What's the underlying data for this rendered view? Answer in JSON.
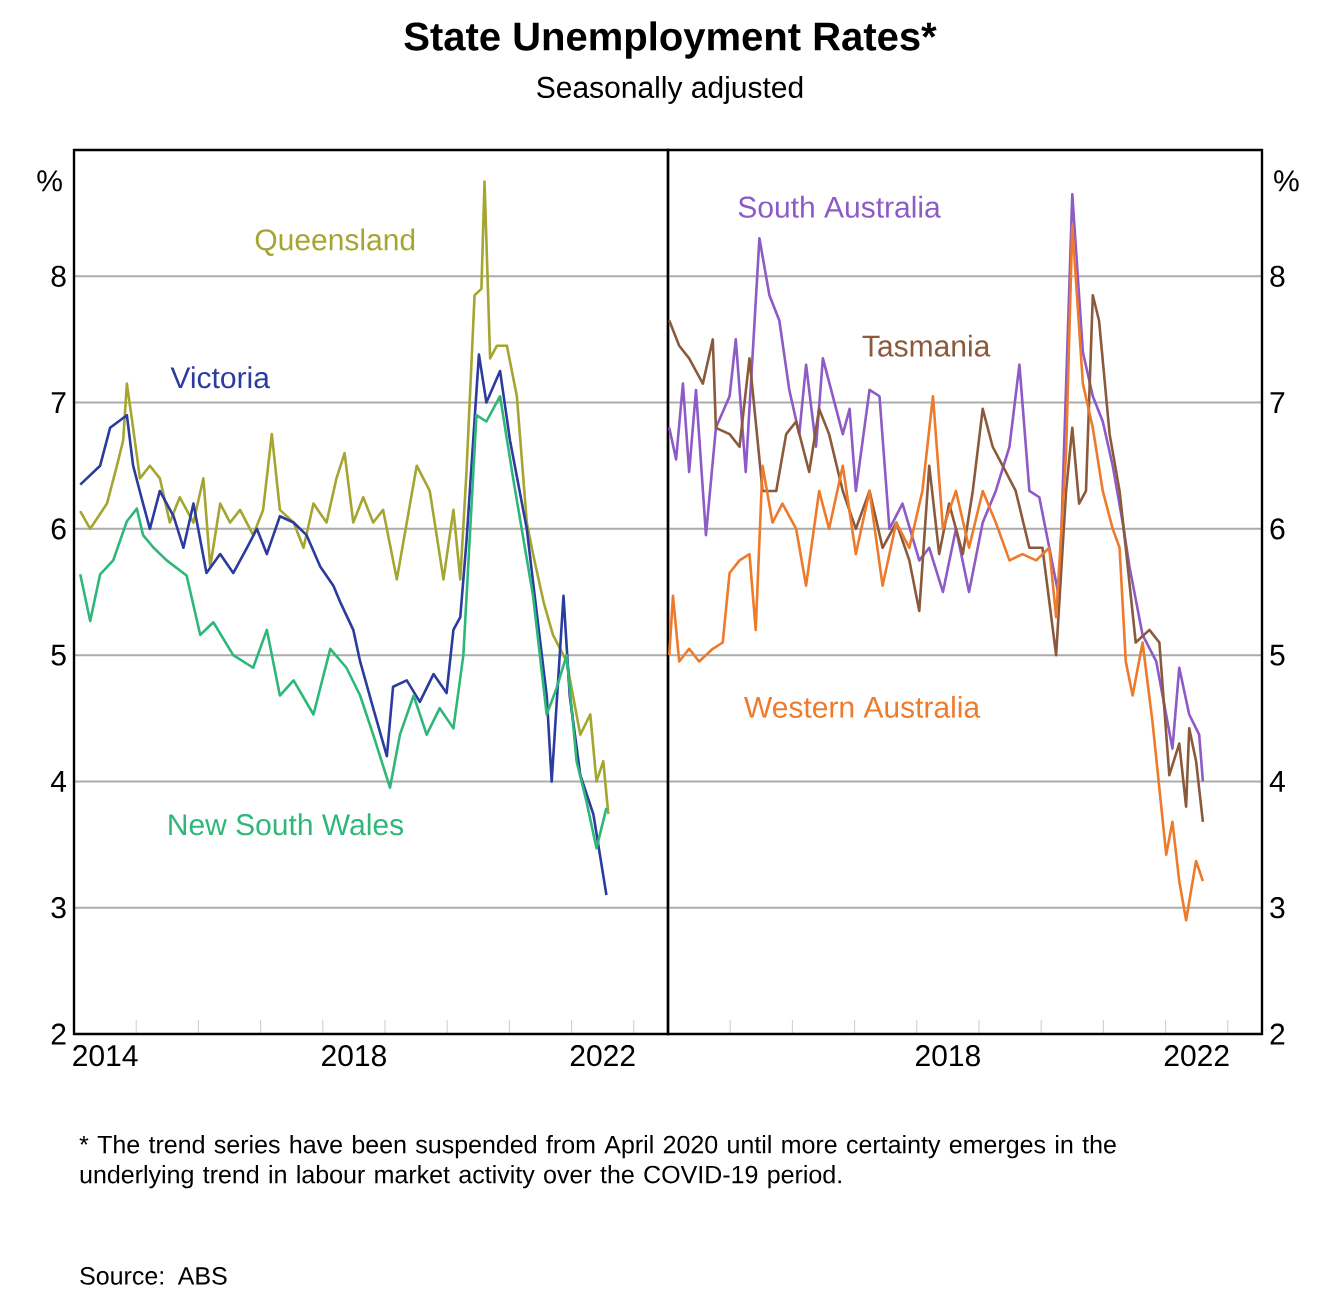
{
  "chart_data": [
    {
      "type": "line",
      "title": "State Unemployment Rates*",
      "subtitle": "Seasonally adjusted",
      "ylabel": "%",
      "grid": "y",
      "xlim": [
        2014,
        2023.55
      ],
      "ylim": [
        2,
        9
      ],
      "xticks": [
        {
          "value": 2014.5,
          "label": "2014"
        },
        {
          "value": 2018.5,
          "label": "2018"
        },
        {
          "value": 2022.5,
          "label": "2022"
        },
        {
          "value": 2015,
          "label": null
        },
        {
          "value": 2016,
          "label": null
        },
        {
          "value": 2017,
          "label": null
        },
        {
          "value": 2018,
          "label": null
        },
        {
          "value": 2019,
          "label": null
        },
        {
          "value": 2020,
          "label": null
        },
        {
          "value": 2021,
          "label": null
        },
        {
          "value": 2022,
          "label": null
        },
        {
          "value": 2023,
          "label": null
        }
      ],
      "yticks": [
        2,
        3,
        4,
        5,
        6,
        7,
        8
      ],
      "annotations": [
        "* The trend series have been suspended from April 2020 until more certainty emerges in the underlying trend in labour market activity over the COVID-19 period.",
        "Source: ABS"
      ],
      "series": [
        {
          "name": "Queensland",
          "color": "#a5a532",
          "x": [
            2014.1,
            2014.26,
            2014.53,
            2014.69,
            2014.79,
            2014.85,
            2014.95,
            2015.06,
            2015.22,
            2015.38,
            2015.54,
            2015.7,
            2015.92,
            2016.08,
            2016.19,
            2016.35,
            2016.51,
            2016.67,
            2016.88,
            2017.04,
            2017.18,
            2017.31,
            2017.53,
            2017.69,
            2017.85,
            2018.06,
            2018.22,
            2018.35,
            2018.49,
            2018.65,
            2018.81,
            2018.97,
            2019.19,
            2019.35,
            2019.51,
            2019.72,
            2019.94,
            2020.1,
            2020.21,
            2020.31,
            2020.44,
            2020.55,
            2020.6,
            2020.69,
            2020.8,
            2020.96,
            2021.12,
            2021.28,
            2021.38,
            2021.55,
            2021.7,
            2021.92,
            2022.14,
            2022.3,
            2022.4,
            2022.51,
            2022.59
          ],
          "values": [
            6.14,
            6.0,
            6.2,
            6.5,
            6.7,
            7.15,
            6.8,
            6.4,
            6.5,
            6.4,
            6.05,
            6.25,
            6.05,
            6.4,
            5.7,
            6.2,
            6.05,
            6.15,
            5.95,
            6.15,
            6.75,
            6.15,
            6.05,
            5.85,
            6.2,
            6.05,
            6.4,
            6.6,
            6.05,
            6.25,
            6.05,
            6.15,
            5.6,
            6.05,
            6.5,
            6.3,
            5.6,
            6.15,
            5.6,
            6.45,
            7.85,
            7.9,
            8.75,
            7.35,
            7.45,
            7.45,
            7.05,
            6.05,
            5.8,
            5.42,
            5.16,
            4.95,
            4.37,
            4.53,
            4.0,
            4.16,
            3.74
          ]
        },
        {
          "name": "Victoria",
          "color": "#2b3c9e",
          "x": [
            2014.1,
            2014.42,
            2014.58,
            2014.85,
            2014.95,
            2015.11,
            2015.22,
            2015.38,
            2015.6,
            2015.76,
            2015.92,
            2016.13,
            2016.35,
            2016.56,
            2016.78,
            2016.94,
            2017.1,
            2017.31,
            2017.53,
            2017.74,
            2017.96,
            2018.17,
            2018.28,
            2018.49,
            2018.6,
            2018.81,
            2019.03,
            2019.13,
            2019.35,
            2019.56,
            2019.78,
            2019.99,
            2020.1,
            2020.21,
            2020.31,
            2020.51,
            2020.63,
            2020.85,
            2021.01,
            2021.28,
            2021.38,
            2021.6,
            2021.68,
            2021.87,
            2021.97,
            2022.14,
            2022.35,
            2022.56
          ],
          "values": [
            6.35,
            6.5,
            6.8,
            6.9,
            6.5,
            6.2,
            6.0,
            6.3,
            6.1,
            5.85,
            6.2,
            5.65,
            5.8,
            5.65,
            5.85,
            6.0,
            5.8,
            6.1,
            6.05,
            5.95,
            5.7,
            5.55,
            5.42,
            5.2,
            4.95,
            4.58,
            4.2,
            4.75,
            4.8,
            4.63,
            4.85,
            4.7,
            5.2,
            5.3,
            5.9,
            7.38,
            7.0,
            7.25,
            6.7,
            6.0,
            5.58,
            4.68,
            4.0,
            5.47,
            4.68,
            4.05,
            3.74,
            3.1
          ]
        },
        {
          "name": "New South Wales",
          "color": "#2fb77a",
          "x": [
            2014.1,
            2014.26,
            2014.42,
            2014.63,
            2014.85,
            2015.01,
            2015.11,
            2015.28,
            2015.49,
            2015.81,
            2016.03,
            2016.24,
            2016.56,
            2016.88,
            2017.1,
            2017.31,
            2017.53,
            2017.85,
            2018.12,
            2018.38,
            2018.6,
            2018.81,
            2019.08,
            2019.24,
            2019.46,
            2019.67,
            2019.88,
            2020.1,
            2020.26,
            2020.47,
            2020.63,
            2020.85,
            2021.06,
            2021.38,
            2021.6,
            2021.76,
            2021.92,
            2022.08,
            2022.24,
            2022.4,
            2022.56
          ],
          "values": [
            5.64,
            5.27,
            5.64,
            5.75,
            6.06,
            6.16,
            5.95,
            5.85,
            5.75,
            5.63,
            5.16,
            5.26,
            5.0,
            4.9,
            5.2,
            4.68,
            4.8,
            4.53,
            5.05,
            4.9,
            4.68,
            4.37,
            3.95,
            4.37,
            4.68,
            4.37,
            4.58,
            4.42,
            5.0,
            6.9,
            6.85,
            7.05,
            6.4,
            5.47,
            4.53,
            4.74,
            5.0,
            4.16,
            3.84,
            3.47,
            3.79
          ]
        }
      ]
    },
    {
      "type": "line",
      "ylabel": "%",
      "grid": "y",
      "xlim": [
        2014,
        2023.55
      ],
      "ylim": [
        2,
        9
      ],
      "xticks": [
        {
          "value": 2018.5,
          "label": "2018"
        },
        {
          "value": 2022.5,
          "label": "2022"
        },
        {
          "value": 2015,
          "label": null
        },
        {
          "value": 2016,
          "label": null
        },
        {
          "value": 2017,
          "label": null
        },
        {
          "value": 2018,
          "label": null
        },
        {
          "value": 2019,
          "label": null
        },
        {
          "value": 2020,
          "label": null
        },
        {
          "value": 2021,
          "label": null
        },
        {
          "value": 2022,
          "label": null
        },
        {
          "value": 2023,
          "label": null
        }
      ],
      "yticks": [
        2,
        3,
        4,
        5,
        6,
        7,
        8
      ],
      "series": [
        {
          "name": "South Australia",
          "color": "#8d5ac6",
          "x": [
            2014.02,
            2014.13,
            2014.24,
            2014.34,
            2014.45,
            2014.61,
            2014.77,
            2014.99,
            2015.09,
            2015.25,
            2015.47,
            2015.63,
            2015.79,
            2015.95,
            2016.11,
            2016.22,
            2016.38,
            2016.49,
            2016.65,
            2016.81,
            2016.92,
            2017.02,
            2017.24,
            2017.4,
            2017.56,
            2017.77,
            2018.04,
            2018.2,
            2018.42,
            2018.63,
            2018.84,
            2019.06,
            2019.27,
            2019.49,
            2019.65,
            2019.81,
            2019.97,
            2020.13,
            2020.29,
            2020.5,
            2020.67,
            2020.83,
            2020.99,
            2021.15,
            2021.31,
            2021.42,
            2021.63,
            2021.85,
            2022.11,
            2022.22,
            2022.38,
            2022.54,
            2022.6
          ],
          "values": [
            6.8,
            6.55,
            7.15,
            6.45,
            7.1,
            5.95,
            6.8,
            7.05,
            7.5,
            6.45,
            8.3,
            7.85,
            7.65,
            7.1,
            6.75,
            7.3,
            6.65,
            7.35,
            7.05,
            6.75,
            6.95,
            6.3,
            7.1,
            7.05,
            6.0,
            6.2,
            5.75,
            5.85,
            5.5,
            6.0,
            5.5,
            6.05,
            6.3,
            6.65,
            7.3,
            6.3,
            6.25,
            5.85,
            5.45,
            8.65,
            7.4,
            7.05,
            6.85,
            6.5,
            6.05,
            5.7,
            5.16,
            4.95,
            4.26,
            4.9,
            4.53,
            4.37,
            4.0
          ]
        },
        {
          "name": "Tasmania",
          "color": "#8b5a3c",
          "x": [
            2014.02,
            2014.18,
            2014.34,
            2014.56,
            2014.72,
            2014.77,
            2014.99,
            2015.15,
            2015.31,
            2015.52,
            2015.74,
            2015.9,
            2016.06,
            2016.27,
            2016.43,
            2016.59,
            2016.81,
            2017.02,
            2017.24,
            2017.45,
            2017.67,
            2017.88,
            2018.04,
            2018.2,
            2018.36,
            2018.52,
            2018.74,
            2018.9,
            2019.06,
            2019.22,
            2019.38,
            2019.59,
            2019.81,
            2020.02,
            2020.24,
            2020.4,
            2020.5,
            2020.61,
            2020.72,
            2020.83,
            2020.93,
            2021.1,
            2021.26,
            2021.36,
            2021.52,
            2021.74,
            2021.9,
            2022.06,
            2022.22,
            2022.33,
            2022.38,
            2022.49,
            2022.6
          ],
          "values": [
            7.65,
            7.45,
            7.35,
            7.15,
            7.5,
            6.8,
            6.75,
            6.65,
            7.35,
            6.3,
            6.3,
            6.75,
            6.85,
            6.45,
            6.95,
            6.75,
            6.3,
            6.0,
            6.3,
            5.85,
            6.05,
            5.75,
            5.35,
            6.5,
            5.8,
            6.2,
            5.8,
            6.3,
            6.95,
            6.65,
            6.5,
            6.3,
            5.85,
            5.85,
            5.0,
            6.3,
            6.8,
            6.2,
            6.3,
            7.85,
            7.65,
            6.75,
            6.3,
            5.85,
            5.1,
            5.2,
            5.1,
            4.05,
            4.3,
            3.8,
            4.42,
            4.16,
            3.68
          ]
        },
        {
          "name": "Western Australia",
          "color": "#ee7a2c",
          "x": [
            2014.02,
            2014.08,
            2014.18,
            2014.34,
            2014.5,
            2014.72,
            2014.88,
            2014.99,
            2015.15,
            2015.31,
            2015.41,
            2015.52,
            2015.68,
            2015.84,
            2016.06,
            2016.22,
            2016.43,
            2016.59,
            2016.81,
            2017.02,
            2017.24,
            2017.45,
            2017.67,
            2017.88,
            2018.09,
            2018.26,
            2018.42,
            2018.63,
            2018.84,
            2019.06,
            2019.27,
            2019.49,
            2019.7,
            2019.92,
            2020.13,
            2020.24,
            2020.4,
            2020.5,
            2020.67,
            2020.83,
            2020.99,
            2021.15,
            2021.26,
            2021.36,
            2021.47,
            2021.63,
            2021.79,
            2022.01,
            2022.11,
            2022.22,
            2022.33,
            2022.49,
            2022.6
          ],
          "values": [
            5.0,
            5.47,
            4.95,
            5.05,
            4.95,
            5.05,
            5.1,
            5.65,
            5.75,
            5.8,
            5.2,
            6.5,
            6.05,
            6.2,
            6.0,
            5.55,
            6.3,
            6.0,
            6.5,
            5.8,
            6.3,
            5.55,
            6.05,
            5.85,
            6.3,
            7.05,
            6.0,
            6.3,
            5.85,
            6.3,
            6.05,
            5.75,
            5.8,
            5.75,
            5.85,
            5.3,
            6.6,
            8.4,
            7.15,
            6.8,
            6.3,
            6.0,
            5.85,
            4.95,
            4.68,
            5.1,
            4.47,
            3.42,
            3.68,
            3.21,
            2.9,
            3.37,
            3.21
          ]
        }
      ]
    }
  ]
}
